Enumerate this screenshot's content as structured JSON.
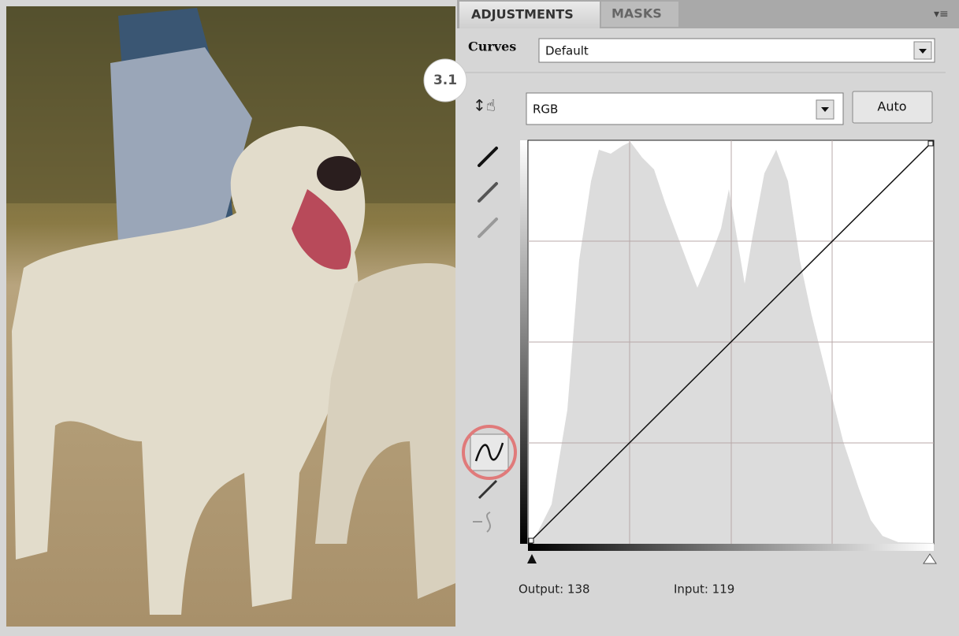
{
  "tabs": [
    "ADJUSTMENTS",
    "MASKS"
  ],
  "preset": {
    "label": "Curves",
    "value": "Default"
  },
  "badge": "3.1",
  "channel": {
    "value": "RGB",
    "button": "Auto"
  },
  "readout": {
    "output": "Output: 138",
    "input": "Input: 119"
  }
}
